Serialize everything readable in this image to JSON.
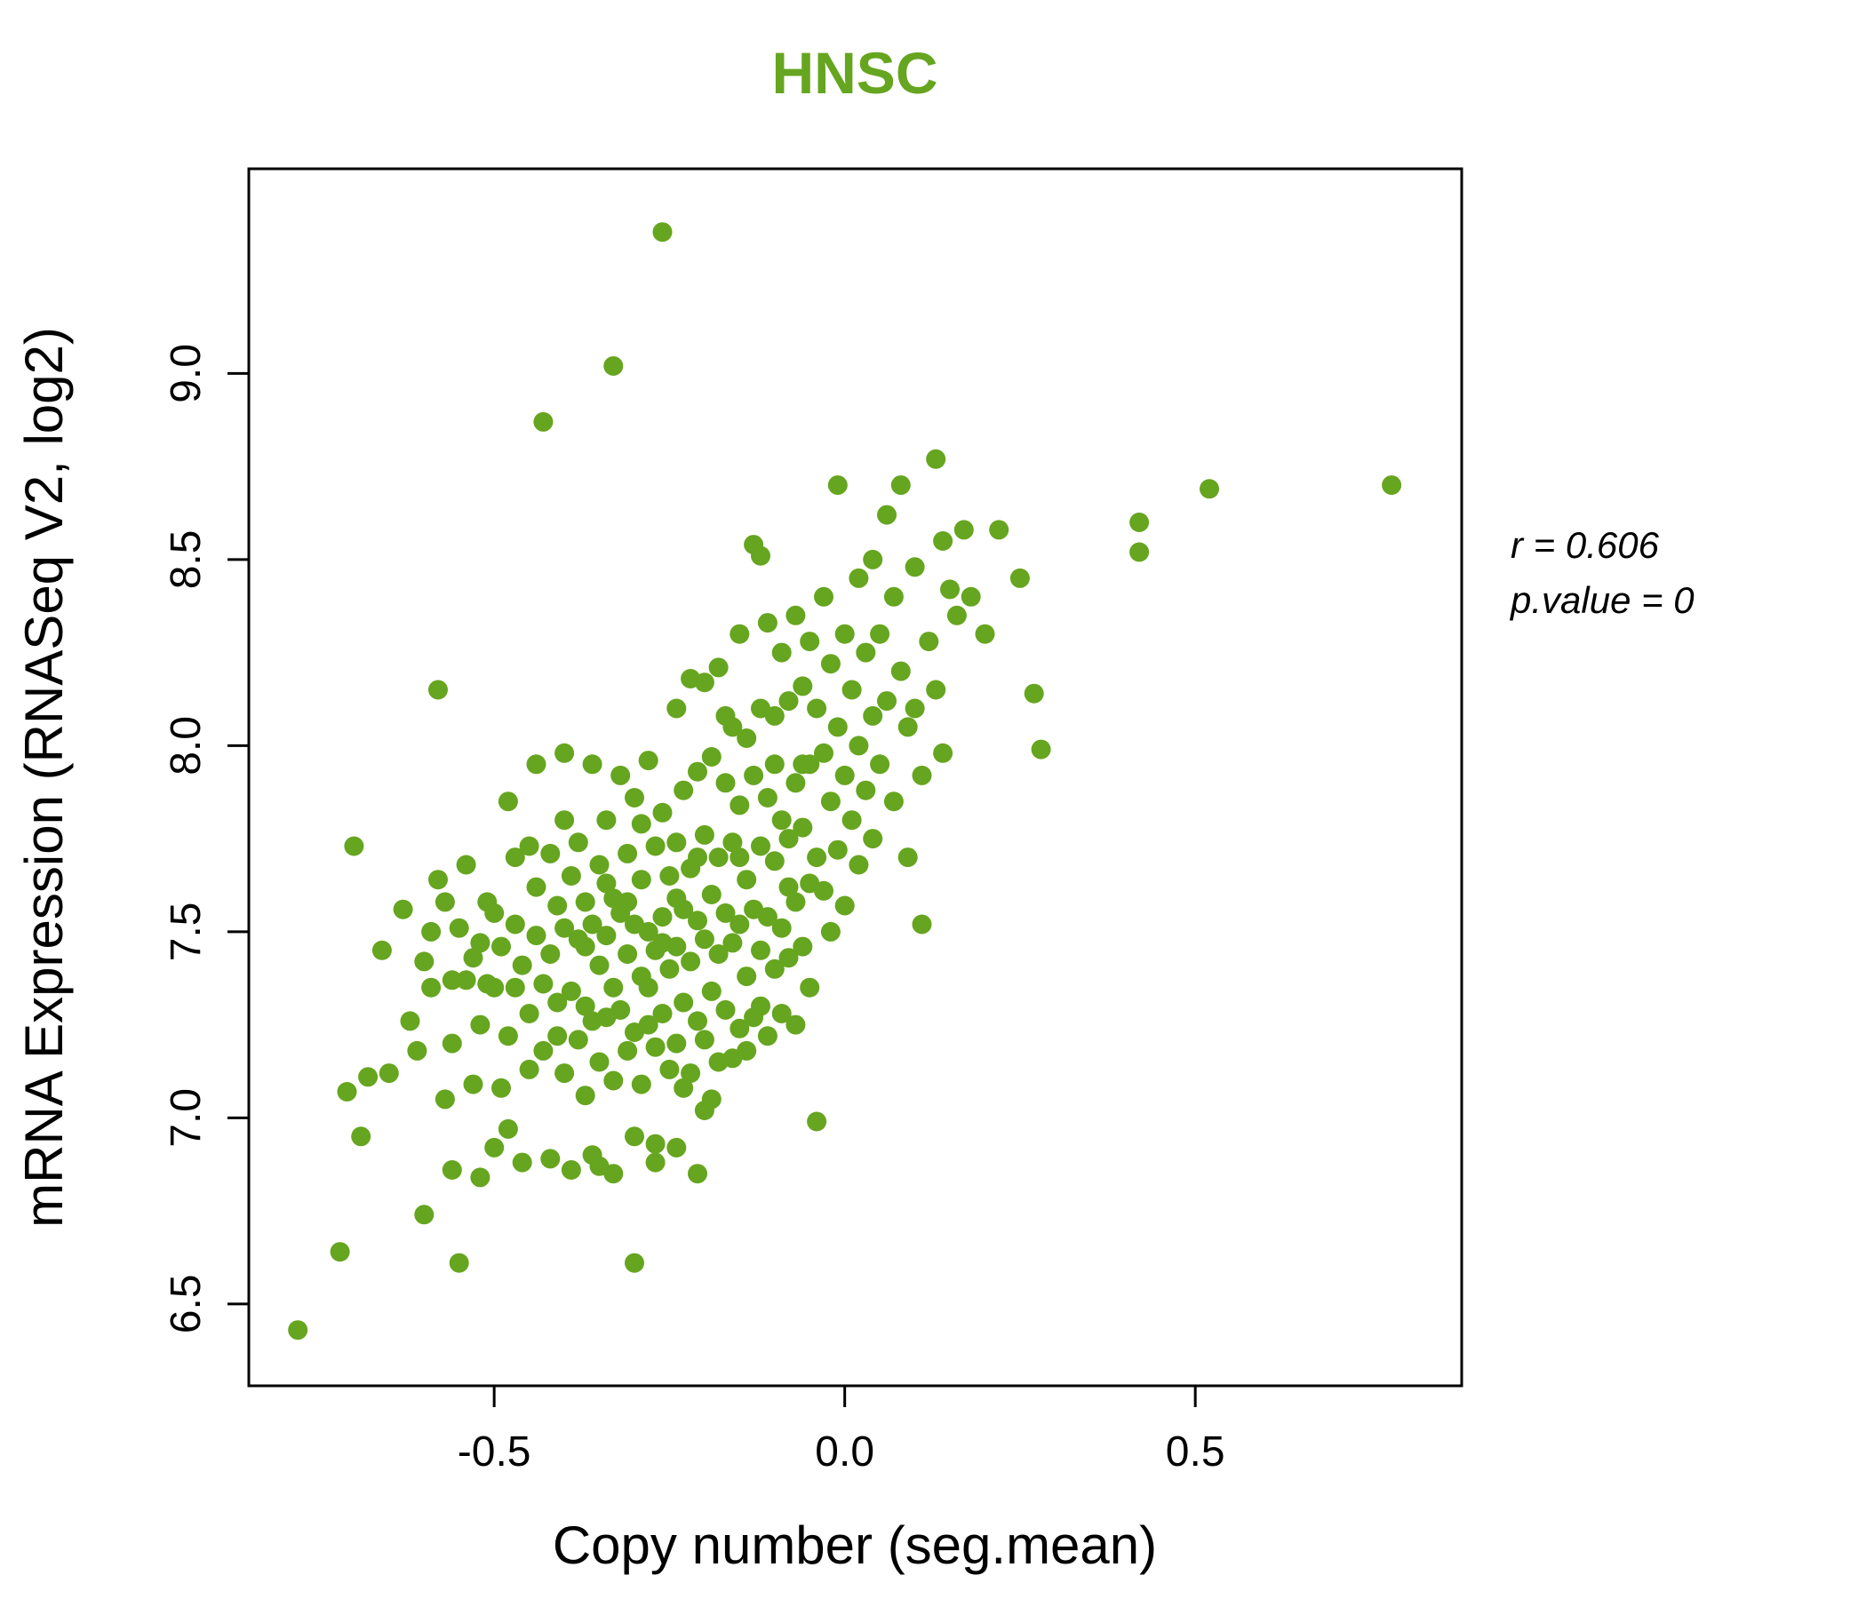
{
  "colors": {
    "point": "#66a51f",
    "title": "#66a51f",
    "axis": "#000000"
  },
  "annotation": {
    "line1": "r = 0.606",
    "line2": "p.value = 0"
  },
  "chart_data": {
    "type": "scatter",
    "title": "HNSC",
    "xlabel": "Copy number (seg.mean)",
    "ylabel": "mRNA Expression (RNASeq V2, log2)",
    "xlim": [
      -0.85,
      0.88
    ],
    "ylim": [
      6.28,
      9.55
    ],
    "x_ticks": [
      -0.5,
      0.0,
      0.5
    ],
    "y_ticks": [
      6.5,
      7.0,
      7.5,
      8.0,
      8.5,
      9.0
    ],
    "grid": false,
    "legend": "none",
    "correlation_r": 0.606,
    "p_value": 0,
    "points": [
      [
        -0.78,
        6.43
      ],
      [
        -0.72,
        6.64
      ],
      [
        -0.71,
        7.07
      ],
      [
        -0.7,
        7.73
      ],
      [
        -0.69,
        6.95
      ],
      [
        -0.68,
        7.11
      ],
      [
        -0.66,
        7.45
      ],
      [
        -0.65,
        7.12
      ],
      [
        -0.63,
        7.56
      ],
      [
        -0.62,
        7.26
      ],
      [
        -0.61,
        7.18
      ],
      [
        -0.6,
        6.74
      ],
      [
        -0.6,
        7.42
      ],
      [
        -0.59,
        7.35
      ],
      [
        -0.59,
        7.5
      ],
      [
        -0.58,
        8.15
      ],
      [
        -0.58,
        7.64
      ],
      [
        -0.57,
        7.05
      ],
      [
        -0.57,
        7.58
      ],
      [
        -0.56,
        7.37
      ],
      [
        -0.56,
        6.86
      ],
      [
        -0.56,
        7.2
      ],
      [
        -0.55,
        6.61
      ],
      [
        -0.55,
        7.51
      ],
      [
        -0.54,
        7.68
      ],
      [
        -0.54,
        7.37
      ],
      [
        -0.53,
        7.09
      ],
      [
        -0.53,
        7.43
      ],
      [
        -0.52,
        6.84
      ],
      [
        -0.52,
        7.25
      ],
      [
        -0.52,
        7.47
      ],
      [
        -0.51,
        7.58
      ],
      [
        -0.51,
        7.36
      ],
      [
        -0.5,
        6.92
      ],
      [
        -0.5,
        7.35
      ],
      [
        -0.5,
        7.55
      ],
      [
        -0.49,
        7.08
      ],
      [
        -0.49,
        7.46
      ],
      [
        -0.48,
        7.85
      ],
      [
        -0.48,
        7.22
      ],
      [
        -0.48,
        6.97
      ],
      [
        -0.47,
        7.52
      ],
      [
        -0.47,
        7.35
      ],
      [
        -0.47,
        7.7
      ],
      [
        -0.46,
        7.41
      ],
      [
        -0.46,
        6.88
      ],
      [
        -0.45,
        7.73
      ],
      [
        -0.45,
        7.28
      ],
      [
        -0.45,
        7.13
      ],
      [
        -0.44,
        7.49
      ],
      [
        -0.44,
        7.95
      ],
      [
        -0.44,
        7.62
      ],
      [
        -0.43,
        8.87
      ],
      [
        -0.43,
        7.36
      ],
      [
        -0.43,
        7.18
      ],
      [
        -0.42,
        7.71
      ],
      [
        -0.42,
        7.44
      ],
      [
        -0.42,
        6.89
      ],
      [
        -0.41,
        7.57
      ],
      [
        -0.41,
        7.31
      ],
      [
        -0.41,
        7.22
      ],
      [
        -0.4,
        7.98
      ],
      [
        -0.4,
        7.51
      ],
      [
        -0.4,
        7.12
      ],
      [
        -0.4,
        7.8
      ],
      [
        -0.39,
        7.65
      ],
      [
        -0.39,
        7.34
      ],
      [
        -0.39,
        6.86
      ],
      [
        -0.38,
        7.74
      ],
      [
        -0.38,
        7.48
      ],
      [
        -0.38,
        7.21
      ],
      [
        -0.37,
        7.58
      ],
      [
        -0.37,
        7.3
      ],
      [
        -0.37,
        7.06
      ],
      [
        -0.37,
        7.46
      ],
      [
        -0.36,
        7.95
      ],
      [
        -0.36,
        7.52
      ],
      [
        -0.36,
        7.26
      ],
      [
        -0.36,
        6.9
      ],
      [
        -0.35,
        7.68
      ],
      [
        -0.35,
        7.41
      ],
      [
        -0.35,
        7.15
      ],
      [
        -0.35,
        6.87
      ],
      [
        -0.34,
        7.8
      ],
      [
        -0.34,
        7.49
      ],
      [
        -0.34,
        7.27
      ],
      [
        -0.34,
        7.63
      ],
      [
        -0.33,
        9.02
      ],
      [
        -0.33,
        7.59
      ],
      [
        -0.33,
        7.35
      ],
      [
        -0.33,
        7.1
      ],
      [
        -0.33,
        6.85
      ],
      [
        -0.32,
        7.92
      ],
      [
        -0.32,
        7.55
      ],
      [
        -0.32,
        7.29
      ],
      [
        -0.31,
        7.71
      ],
      [
        -0.31,
        7.44
      ],
      [
        -0.31,
        7.18
      ],
      [
        -0.31,
        7.58
      ],
      [
        -0.3,
        6.61
      ],
      [
        -0.3,
        7.86
      ],
      [
        -0.3,
        7.52
      ],
      [
        -0.3,
        7.23
      ],
      [
        -0.3,
        6.95
      ],
      [
        -0.29,
        7.64
      ],
      [
        -0.29,
        7.38
      ],
      [
        -0.29,
        7.09
      ],
      [
        -0.29,
        7.79
      ],
      [
        -0.28,
        7.96
      ],
      [
        -0.28,
        7.5
      ],
      [
        -0.28,
        7.25
      ],
      [
        -0.28,
        7.35
      ],
      [
        -0.27,
        7.73
      ],
      [
        -0.27,
        7.45
      ],
      [
        -0.27,
        7.19
      ],
      [
        -0.27,
        6.93
      ],
      [
        -0.27,
        6.88
      ],
      [
        -0.26,
        9.38
      ],
      [
        -0.26,
        7.82
      ],
      [
        -0.26,
        7.54
      ],
      [
        -0.26,
        7.28
      ],
      [
        -0.26,
        7.47
      ],
      [
        -0.25,
        7.65
      ],
      [
        -0.25,
        7.4
      ],
      [
        -0.25,
        7.13
      ],
      [
        -0.24,
        8.1
      ],
      [
        -0.24,
        7.74
      ],
      [
        -0.24,
        7.46
      ],
      [
        -0.24,
        7.2
      ],
      [
        -0.24,
        6.92
      ],
      [
        -0.24,
        7.59
      ],
      [
        -0.23,
        7.88
      ],
      [
        -0.23,
        7.56
      ],
      [
        -0.23,
        7.31
      ],
      [
        -0.23,
        7.08
      ],
      [
        -0.22,
        8.18
      ],
      [
        -0.22,
        7.67
      ],
      [
        -0.22,
        7.42
      ],
      [
        -0.22,
        7.12
      ],
      [
        -0.21,
        7.93
      ],
      [
        -0.21,
        7.53
      ],
      [
        -0.21,
        7.26
      ],
      [
        -0.21,
        7.7
      ],
      [
        -0.21,
        6.85
      ],
      [
        -0.2,
        8.17
      ],
      [
        -0.2,
        7.76
      ],
      [
        -0.2,
        7.48
      ],
      [
        -0.2,
        7.21
      ],
      [
        -0.2,
        7.02
      ],
      [
        -0.19,
        7.97
      ],
      [
        -0.19,
        7.6
      ],
      [
        -0.19,
        7.34
      ],
      [
        -0.19,
        7.05
      ],
      [
        -0.18,
        8.21
      ],
      [
        -0.18,
        7.7
      ],
      [
        -0.18,
        7.44
      ],
      [
        -0.18,
        7.15
      ],
      [
        -0.17,
        7.9
      ],
      [
        -0.17,
        7.55
      ],
      [
        -0.17,
        7.29
      ],
      [
        -0.17,
        8.08
      ],
      [
        -0.16,
        8.05
      ],
      [
        -0.16,
        7.74
      ],
      [
        -0.16,
        7.47
      ],
      [
        -0.16,
        7.16
      ],
      [
        -0.15,
        8.3
      ],
      [
        -0.15,
        7.84
      ],
      [
        -0.15,
        7.52
      ],
      [
        -0.15,
        7.24
      ],
      [
        -0.15,
        7.7
      ],
      [
        -0.14,
        8.02
      ],
      [
        -0.14,
        7.64
      ],
      [
        -0.14,
        7.38
      ],
      [
        -0.14,
        7.18
      ],
      [
        -0.13,
        8.54
      ],
      [
        -0.13,
        7.92
      ],
      [
        -0.13,
        7.56
      ],
      [
        -0.13,
        7.27
      ],
      [
        -0.12,
        8.51
      ],
      [
        -0.12,
        8.1
      ],
      [
        -0.12,
        7.73
      ],
      [
        -0.12,
        7.45
      ],
      [
        -0.12,
        7.3
      ],
      [
        -0.11,
        8.33
      ],
      [
        -0.11,
        7.86
      ],
      [
        -0.11,
        7.54
      ],
      [
        -0.11,
        7.22
      ],
      [
        -0.1,
        8.08
      ],
      [
        -0.1,
        7.69
      ],
      [
        -0.1,
        7.4
      ],
      [
        -0.1,
        7.95
      ],
      [
        -0.09,
        8.25
      ],
      [
        -0.09,
        7.8
      ],
      [
        -0.09,
        7.51
      ],
      [
        -0.09,
        7.28
      ],
      [
        -0.08,
        8.12
      ],
      [
        -0.08,
        7.75
      ],
      [
        -0.08,
        7.43
      ],
      [
        -0.08,
        7.62
      ],
      [
        -0.07,
        8.35
      ],
      [
        -0.07,
        7.9
      ],
      [
        -0.07,
        7.58
      ],
      [
        -0.07,
        7.25
      ],
      [
        -0.06,
        8.16
      ],
      [
        -0.06,
        7.78
      ],
      [
        -0.06,
        7.46
      ],
      [
        -0.06,
        7.95
      ],
      [
        -0.05,
        8.28
      ],
      [
        -0.05,
        7.95
      ],
      [
        -0.05,
        7.63
      ],
      [
        -0.05,
        7.35
      ],
      [
        -0.04,
        8.1
      ],
      [
        -0.04,
        7.7
      ],
      [
        -0.04,
        6.99
      ],
      [
        -0.03,
        8.4
      ],
      [
        -0.03,
        7.98
      ],
      [
        -0.03,
        7.61
      ],
      [
        -0.02,
        8.22
      ],
      [
        -0.02,
        7.85
      ],
      [
        -0.02,
        7.5
      ],
      [
        -0.01,
        8.7
      ],
      [
        -0.01,
        8.05
      ],
      [
        -0.01,
        7.72
      ],
      [
        0.0,
        8.3
      ],
      [
        0.0,
        7.92
      ],
      [
        0.0,
        7.57
      ],
      [
        0.01,
        8.15
      ],
      [
        0.01,
        7.8
      ],
      [
        0.02,
        8.45
      ],
      [
        0.02,
        8.0
      ],
      [
        0.02,
        7.68
      ],
      [
        0.03,
        8.25
      ],
      [
        0.03,
        7.88
      ],
      [
        0.04,
        8.5
      ],
      [
        0.04,
        8.08
      ],
      [
        0.04,
        7.75
      ],
      [
        0.05,
        8.3
      ],
      [
        0.05,
        7.95
      ],
      [
        0.06,
        8.62
      ],
      [
        0.06,
        8.12
      ],
      [
        0.07,
        8.4
      ],
      [
        0.07,
        7.85
      ],
      [
        0.08,
        8.7
      ],
      [
        0.08,
        8.2
      ],
      [
        0.09,
        8.05
      ],
      [
        0.09,
        7.7
      ],
      [
        0.1,
        8.48
      ],
      [
        0.1,
        8.1
      ],
      [
        0.11,
        7.92
      ],
      [
        0.11,
        7.52
      ],
      [
        0.12,
        8.28
      ],
      [
        0.13,
        8.77
      ],
      [
        0.13,
        8.15
      ],
      [
        0.14,
        8.55
      ],
      [
        0.14,
        7.98
      ],
      [
        0.15,
        8.42
      ],
      [
        0.16,
        8.35
      ],
      [
        0.17,
        8.58
      ],
      [
        0.18,
        8.4
      ],
      [
        0.2,
        8.3
      ],
      [
        0.22,
        8.58
      ],
      [
        0.25,
        8.45
      ],
      [
        0.27,
        8.14
      ],
      [
        0.28,
        7.99
      ],
      [
        0.42,
        8.6
      ],
      [
        0.42,
        8.52
      ],
      [
        0.52,
        8.69
      ],
      [
        0.78,
        8.7
      ]
    ]
  }
}
